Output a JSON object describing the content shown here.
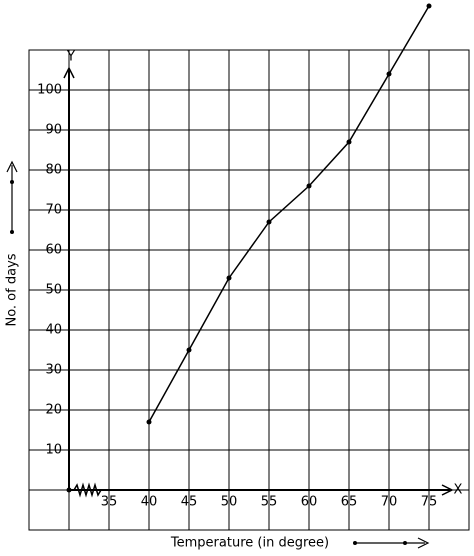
{
  "chart_data": {
    "type": "line",
    "x_label": "Temperature (in degree)",
    "y_label": "No. of days",
    "x_axis_name": "X",
    "y_axis_name": "Y",
    "x": [
      40,
      45,
      50,
      55,
      60,
      65,
      70,
      75
    ],
    "values": [
      17,
      35,
      53,
      67,
      76,
      87,
      104,
      121
    ],
    "color": "#000000",
    "xlim": [
      25,
      80
    ],
    "ylim": [
      -10,
      110
    ],
    "xticks": [
      35,
      40,
      45,
      50,
      55,
      60,
      65,
      70,
      75
    ],
    "yticks": [
      10,
      20,
      30,
      40,
      50,
      60,
      70,
      80,
      90,
      100
    ],
    "grid": true
  }
}
